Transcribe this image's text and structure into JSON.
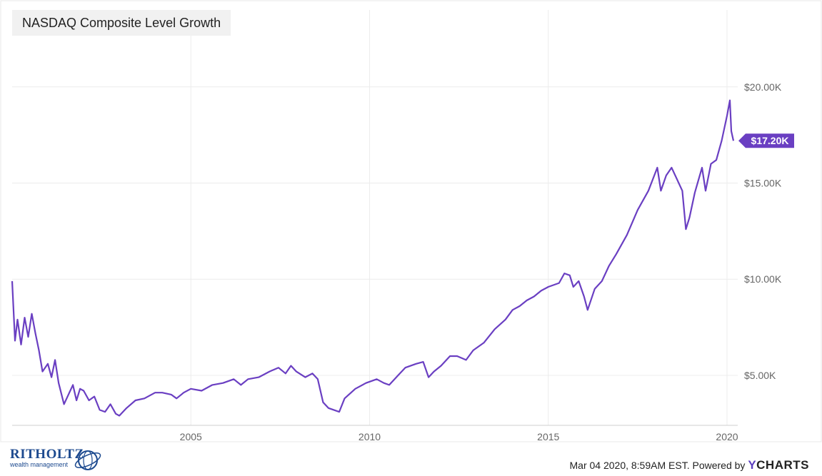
{
  "chart_data": {
    "type": "line",
    "title": "NASDAQ Composite Level Growth",
    "xlabel": "",
    "ylabel": "",
    "x_tick_labels": [
      "2005",
      "2010",
      "2015",
      "2020"
    ],
    "y_tick_labels": [
      "$5.00K",
      "$10.00K",
      "$15.00K",
      "$20.00K"
    ],
    "y_ticks": [
      5000,
      10000,
      15000,
      20000
    ],
    "xlim": [
      2000.0,
      2020.3
    ],
    "ylim": [
      2400,
      24000
    ],
    "grid": true,
    "last_value_label": "$17.20K",
    "line_color": "#6a3fc2",
    "series": [
      {
        "x": [
          2000.0,
          2000.08,
          2000.15,
          2000.25,
          2000.35,
          2000.45,
          2000.55,
          2000.65,
          2000.75,
          2000.85,
          2001.0,
          2001.1,
          2001.2,
          2001.3,
          2001.45,
          2001.6,
          2001.7,
          2001.8,
          2001.9,
          2002.0,
          2002.15,
          2002.3,
          2002.45,
          2002.6,
          2002.75,
          2002.9,
          2003.0,
          2003.2,
          2003.45,
          2003.7,
          2004.0,
          2004.2,
          2004.45,
          2004.6,
          2004.8,
          2005.0,
          2005.3,
          2005.6,
          2005.9,
          2006.2,
          2006.4,
          2006.6,
          2006.9,
          2007.2,
          2007.45,
          2007.65,
          2007.8,
          2007.95,
          2008.2,
          2008.4,
          2008.55,
          2008.7,
          2008.85,
          2009.0,
          2009.15,
          2009.3,
          2009.6,
          2009.9,
          2010.2,
          2010.4,
          2010.55,
          2010.8,
          2011.0,
          2011.3,
          2011.5,
          2011.65,
          2011.8,
          2012.0,
          2012.25,
          2012.45,
          2012.7,
          2012.9,
          2013.2,
          2013.5,
          2013.8,
          2014.0,
          2014.2,
          2014.4,
          2014.6,
          2014.8,
          2015.0,
          2015.3,
          2015.45,
          2015.6,
          2015.7,
          2015.85,
          2016.0,
          2016.1,
          2016.3,
          2016.5,
          2016.7,
          2016.9,
          2017.2,
          2017.5,
          2017.8,
          2018.05,
          2018.15,
          2018.3,
          2018.45,
          2018.6,
          2018.75,
          2018.85,
          2018.95,
          2019.1,
          2019.3,
          2019.4,
          2019.55,
          2019.7,
          2019.85,
          2020.0,
          2020.08,
          2020.12,
          2020.18
        ],
        "y": [
          9900,
          6800,
          7900,
          6600,
          8000,
          7000,
          8200,
          7200,
          6300,
          5200,
          5600,
          4900,
          5800,
          4600,
          3500,
          4100,
          4500,
          3700,
          4300,
          4200,
          3700,
          3900,
          3200,
          3100,
          3500,
          3000,
          2900,
          3300,
          3700,
          3800,
          4100,
          4100,
          4000,
          3800,
          4100,
          4300,
          4200,
          4500,
          4600,
          4800,
          4500,
          4800,
          4900,
          5200,
          5400,
          5100,
          5500,
          5200,
          4900,
          5100,
          4800,
          3600,
          3300,
          3200,
          3100,
          3800,
          4300,
          4600,
          4800,
          4600,
          4500,
          5000,
          5400,
          5600,
          5700,
          4900,
          5200,
          5500,
          6000,
          6000,
          5800,
          6300,
          6700,
          7400,
          7900,
          8400,
          8600,
          8900,
          9100,
          9400,
          9600,
          9800,
          10300,
          10200,
          9600,
          9900,
          9100,
          8400,
          9500,
          9900,
          10700,
          11300,
          12300,
          13600,
          14600,
          15800,
          14600,
          15400,
          15800,
          15200,
          14600,
          12600,
          13200,
          14500,
          15800,
          14600,
          16000,
          16200,
          17200,
          18500,
          19300,
          17700,
          17200
        ]
      }
    ]
  },
  "footer": {
    "brand_main": "RITHOLTZ",
    "brand_sub": "wealth management",
    "timestamp": "Mar 04 2020, 8:59AM EST. Powered by",
    "ycharts_y": "Y",
    "ycharts_rest": "CHARTS"
  }
}
